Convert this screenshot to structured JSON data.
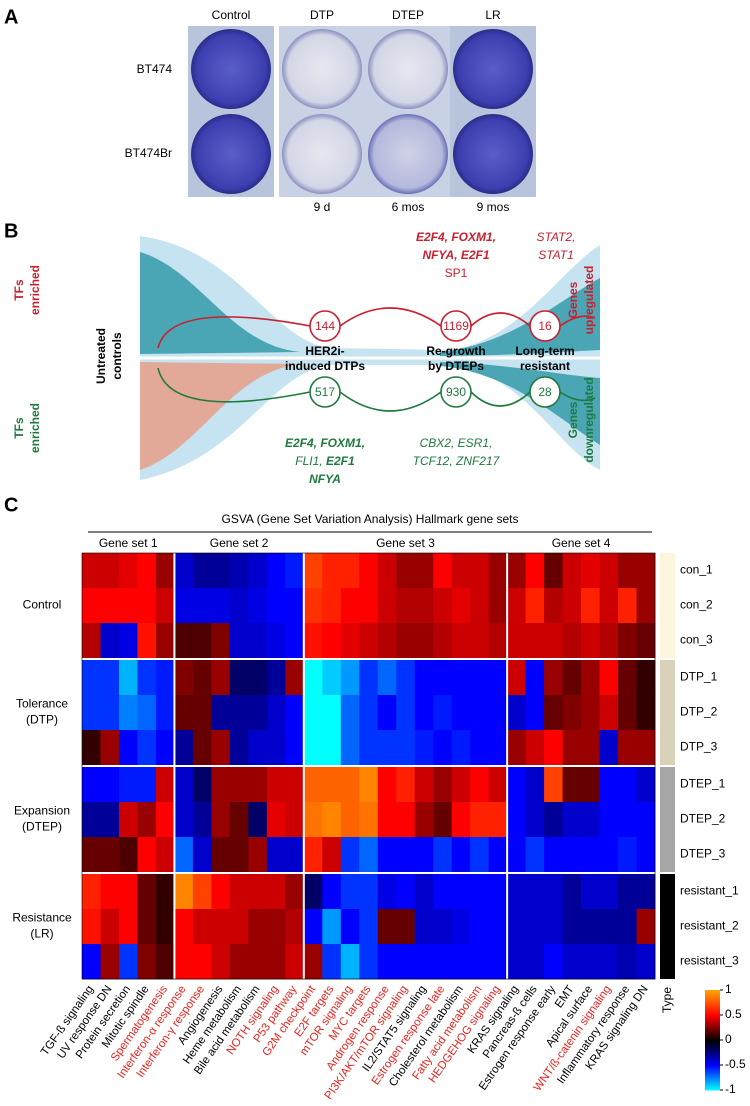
{
  "panel_a": {
    "label": "A",
    "conditions": [
      "Control",
      "DTP",
      "DTEP",
      "LR"
    ],
    "cell_lines": [
      "BT474",
      "BT474Br"
    ],
    "durations": [
      "9 d",
      "6 mos",
      "9 mos"
    ]
  },
  "panel_b": {
    "label": "B",
    "tfs_top": [
      "TFs",
      "enriched"
    ],
    "tfs_bottom": [
      "TFs",
      "enriched"
    ],
    "untreated": [
      "Untreated",
      "controls"
    ],
    "up_label": [
      "Genes",
      "upregulated"
    ],
    "down_label": [
      "Genes",
      "downregulated"
    ],
    "stages": [
      {
        "name": [
          "HER2i-",
          "induced DTPs"
        ],
        "up": "144",
        "down": "517"
      },
      {
        "name": [
          "Re-growth",
          "by DTEPs"
        ],
        "up": "1169",
        "down": "930"
      },
      {
        "name": [
          "Long-term",
          "resistant"
        ],
        "up": "16",
        "down": "28"
      }
    ],
    "top_tfs_dtep": [
      "E2F4, FOXM1,",
      "NFYA, E2F1",
      "SP1"
    ],
    "top_tfs_lr": [
      "STAT2,",
      "STAT1"
    ],
    "bottom_tfs_dtp": [
      "E2F4, FOXM1,",
      [
        "FLI1,",
        "E2F1"
      ],
      "NFYA"
    ],
    "bottom_tfs_dtep": [
      "CBX2, ESR1,",
      "TCF12, ZNF217"
    ]
  },
  "chart_data": {
    "type": "heatmap",
    "panel_label": "C",
    "title": "GSVA (Gene Set Variation Analysis) Hallmark gene sets",
    "gene_sets": [
      {
        "name": "Gene set 1",
        "columns": [
          "TGF-ß signaling",
          "UV response DN",
          "Protein secretion",
          "Mitotic spindle",
          "Spermatogenesis"
        ],
        "colors": [
          "#000000",
          "#000000",
          "#000000",
          "#000000",
          "#e8231f"
        ]
      },
      {
        "name": "Gene set 2",
        "columns": [
          "Interferon-α response",
          "Interferon-γ response",
          "Angiogenesis",
          "Heme metabolism",
          "Bile acid metabolism",
          "NOTH signaling",
          "P53 pathway"
        ],
        "colors": [
          "#e8231f",
          "#e8231f",
          "#000000",
          "#000000",
          "#000000",
          "#e8231f",
          "#e8231f"
        ]
      },
      {
        "name": "Gene set 3",
        "columns": [
          "G2M checkpoint",
          "E2F targets",
          "mTOR signaling",
          "MYC targets",
          "Androgen response",
          "PI3K/AKT/mTOR signaling",
          "IL2/STAT5 signaling",
          "Estrogen response late",
          "Cholesterol metabolism",
          "Fatty acid metabolism",
          "HEDGEHOG signaling"
        ],
        "colors": [
          "#e8231f",
          "#e8231f",
          "#e8231f",
          "#e8231f",
          "#e8231f",
          "#e8231f",
          "#000000",
          "#e8231f",
          "#000000",
          "#e8231f",
          "#e8231f"
        ]
      },
      {
        "name": "Gene set 4",
        "columns": [
          "KRAS signaling",
          "Pancreas-ß cells",
          "Estrogen response early",
          "EMT",
          "Apical surface",
          "WNT/ß-catenin signaling",
          "Inflammatory response",
          "KRAS signaling DN"
        ],
        "colors": [
          "#000000",
          "#000000",
          "#000000",
          "#000000",
          "#000000",
          "#e8231f",
          "#000000",
          "#000000"
        ]
      }
    ],
    "row_groups": [
      {
        "name": [
          "Control"
        ],
        "type_color": "#fdf5dc",
        "rows": [
          {
            "name": "con_1",
            "values": [
              0.4,
              0.4,
              0.45,
              0.5,
              0.3,
              -0.4,
              -0.3,
              -0.3,
              -0.35,
              -0.4,
              -0.5,
              -0.55,
              0.7,
              0.6,
              0.6,
              0.5,
              0.4,
              0.3,
              0.3,
              0.5,
              0.4,
              0.4,
              0.3,
              0.3,
              0.5,
              0.2,
              0.4,
              0.45,
              0.4,
              0.3,
              0.3
            ]
          },
          {
            "name": "con_2",
            "values": [
              0.5,
              0.5,
              0.5,
              0.5,
              0.4,
              -0.45,
              -0.45,
              -0.45,
              -0.4,
              -0.45,
              -0.5,
              -0.5,
              0.65,
              0.6,
              0.5,
              0.5,
              0.4,
              0.35,
              0.35,
              0.4,
              0.45,
              0.4,
              0.3,
              0.4,
              0.6,
              0.35,
              0.4,
              0.6,
              0.4,
              0.6,
              0.3
            ]
          },
          {
            "name": "con_3",
            "values": [
              0.35,
              -0.4,
              -0.45,
              0.55,
              0.3,
              0.15,
              0.15,
              0.25,
              -0.4,
              -0.4,
              -0.45,
              -0.5,
              0.55,
              0.5,
              0.45,
              0.4,
              0.35,
              0.3,
              0.3,
              0.35,
              0.4,
              0.4,
              0.35,
              0.4,
              0.4,
              0.4,
              0.35,
              0.4,
              0.35,
              0.25,
              0.2
            ]
          }
        ]
      },
      {
        "name": [
          "Tolerance",
          "(DTP)"
        ],
        "type_color": "#d9d2b8",
        "rows": [
          {
            "name": "DTP_1",
            "values": [
              -0.6,
              -0.6,
              -0.85,
              -0.6,
              -0.55,
              0.25,
              0.2,
              0.3,
              -0.2,
              -0.2,
              -0.3,
              0.3,
              -1,
              -0.9,
              -0.8,
              -0.6,
              -0.7,
              -0.6,
              -0.5,
              -0.5,
              -0.5,
              -0.5,
              -0.5,
              0.4,
              -0.5,
              0.3,
              0.2,
              0.3,
              0.5,
              0.2,
              0.1
            ]
          },
          {
            "name": "DTP_2",
            "values": [
              -0.6,
              -0.6,
              -0.75,
              -0.7,
              -0.55,
              0.2,
              0.2,
              -0.3,
              -0.3,
              -0.3,
              -0.4,
              -0.5,
              -1,
              -1,
              -0.7,
              -0.6,
              -0.5,
              -0.6,
              -0.5,
              -0.55,
              -0.5,
              -0.5,
              -0.5,
              -0.4,
              -0.5,
              0.2,
              0.25,
              0.3,
              0.4,
              0.2,
              0.1
            ]
          },
          {
            "name": "DTP_3",
            "values": [
              0.1,
              0.3,
              -0.5,
              -0.6,
              -0.5,
              -0.3,
              0.2,
              0.3,
              -0.3,
              -0.4,
              -0.4,
              -0.5,
              -1,
              -1,
              -0.7,
              -0.6,
              -0.6,
              -0.6,
              -0.55,
              -0.5,
              -0.55,
              -0.5,
              -0.5,
              0.3,
              0.4,
              0.5,
              0.3,
              0.3,
              -0.4,
              0.3,
              0.3
            ]
          }
        ]
      },
      {
        "name": [
          "Expansion",
          "(DTEP)"
        ],
        "type_color": "#a6a6a6",
        "rows": [
          {
            "name": "DTEP_1",
            "values": [
              -0.5,
              -0.5,
              -0.55,
              -0.55,
              0.4,
              -0.4,
              -0.2,
              0.3,
              0.3,
              0.3,
              0.4,
              0.4,
              0.8,
              0.8,
              0.8,
              0.9,
              0.5,
              0.6,
              0.4,
              0.3,
              0.4,
              0.5,
              0.4,
              -0.5,
              -0.4,
              0.7,
              0.2,
              0.2,
              -0.5,
              -0.5,
              -0.4
            ]
          },
          {
            "name": "DTEP_2",
            "values": [
              -0.3,
              -0.3,
              0.4,
              0.3,
              0.5,
              -0.4,
              -0.3,
              0.3,
              0.2,
              -0.2,
              0.45,
              0.4,
              0.85,
              0.9,
              0.8,
              0.85,
              0.5,
              0.5,
              0.3,
              0.2,
              0.5,
              0.6,
              0.6,
              -0.5,
              -0.4,
              -0.3,
              -0.4,
              -0.4,
              -0.5,
              -0.5,
              -0.5
            ]
          },
          {
            "name": "DTEP_3",
            "values": [
              0.2,
              0.2,
              0.15,
              0.5,
              0.4,
              -0.7,
              -0.4,
              0.2,
              0.2,
              0.3,
              -0.4,
              -0.4,
              0.6,
              0.4,
              -0.6,
              -0.7,
              -0.5,
              -0.5,
              -0.5,
              -0.6,
              -0.5,
              -0.6,
              -0.5,
              -0.5,
              -0.6,
              -0.5,
              -0.5,
              -0.5,
              -0.5,
              -0.55,
              -0.5
            ]
          }
        ]
      },
      {
        "name": [
          "Resistance",
          "(LR)"
        ],
        "type_color": "#000000",
        "rows": [
          {
            "name": "resistant_1",
            "values": [
              0.6,
              0.5,
              0.5,
              0.2,
              0.1,
              0.9,
              0.7,
              0.5,
              0.4,
              0.4,
              0.4,
              0.3,
              -0.2,
              -0.5,
              -0.6,
              -0.6,
              -0.45,
              -0.5,
              -0.4,
              -0.5,
              -0.5,
              -0.5,
              -0.5,
              -0.4,
              -0.4,
              -0.4,
              -0.3,
              -0.4,
              -0.4,
              -0.3,
              -0.3
            ]
          },
          {
            "name": "resistant_2",
            "values": [
              0.55,
              0.4,
              0.5,
              0.2,
              0.1,
              0.5,
              0.4,
              0.4,
              0.4,
              0.3,
              0.3,
              0.35,
              -0.5,
              -0.8,
              -0.5,
              -0.6,
              0.2,
              0.2,
              -0.4,
              -0.4,
              -0.45,
              -0.5,
              -0.5,
              -0.4,
              -0.4,
              -0.4,
              -0.3,
              -0.3,
              -0.3,
              -0.3,
              0.3
            ]
          },
          {
            "name": "resistant_3",
            "values": [
              -0.5,
              0.3,
              -0.6,
              0.25,
              0.15,
              0.5,
              0.5,
              0.4,
              0.3,
              0.3,
              0.3,
              0.4,
              0.3,
              -0.6,
              -0.85,
              -0.6,
              -0.5,
              -0.5,
              -0.5,
              -0.5,
              -0.5,
              -0.5,
              -0.5,
              -0.4,
              -0.4,
              -0.5,
              -0.4,
              -0.4,
              -0.4,
              -0.35,
              -0.4
            ]
          }
        ]
      }
    ],
    "type_label": "Type",
    "zlim": [
      -1,
      1
    ],
    "zticks": [
      1,
      0.5,
      0,
      -0.5,
      -1
    ],
    "colormap": [
      "#00ffff",
      "#0000ff",
      "#000000",
      "#ff0000",
      "#ffa500"
    ]
  }
}
